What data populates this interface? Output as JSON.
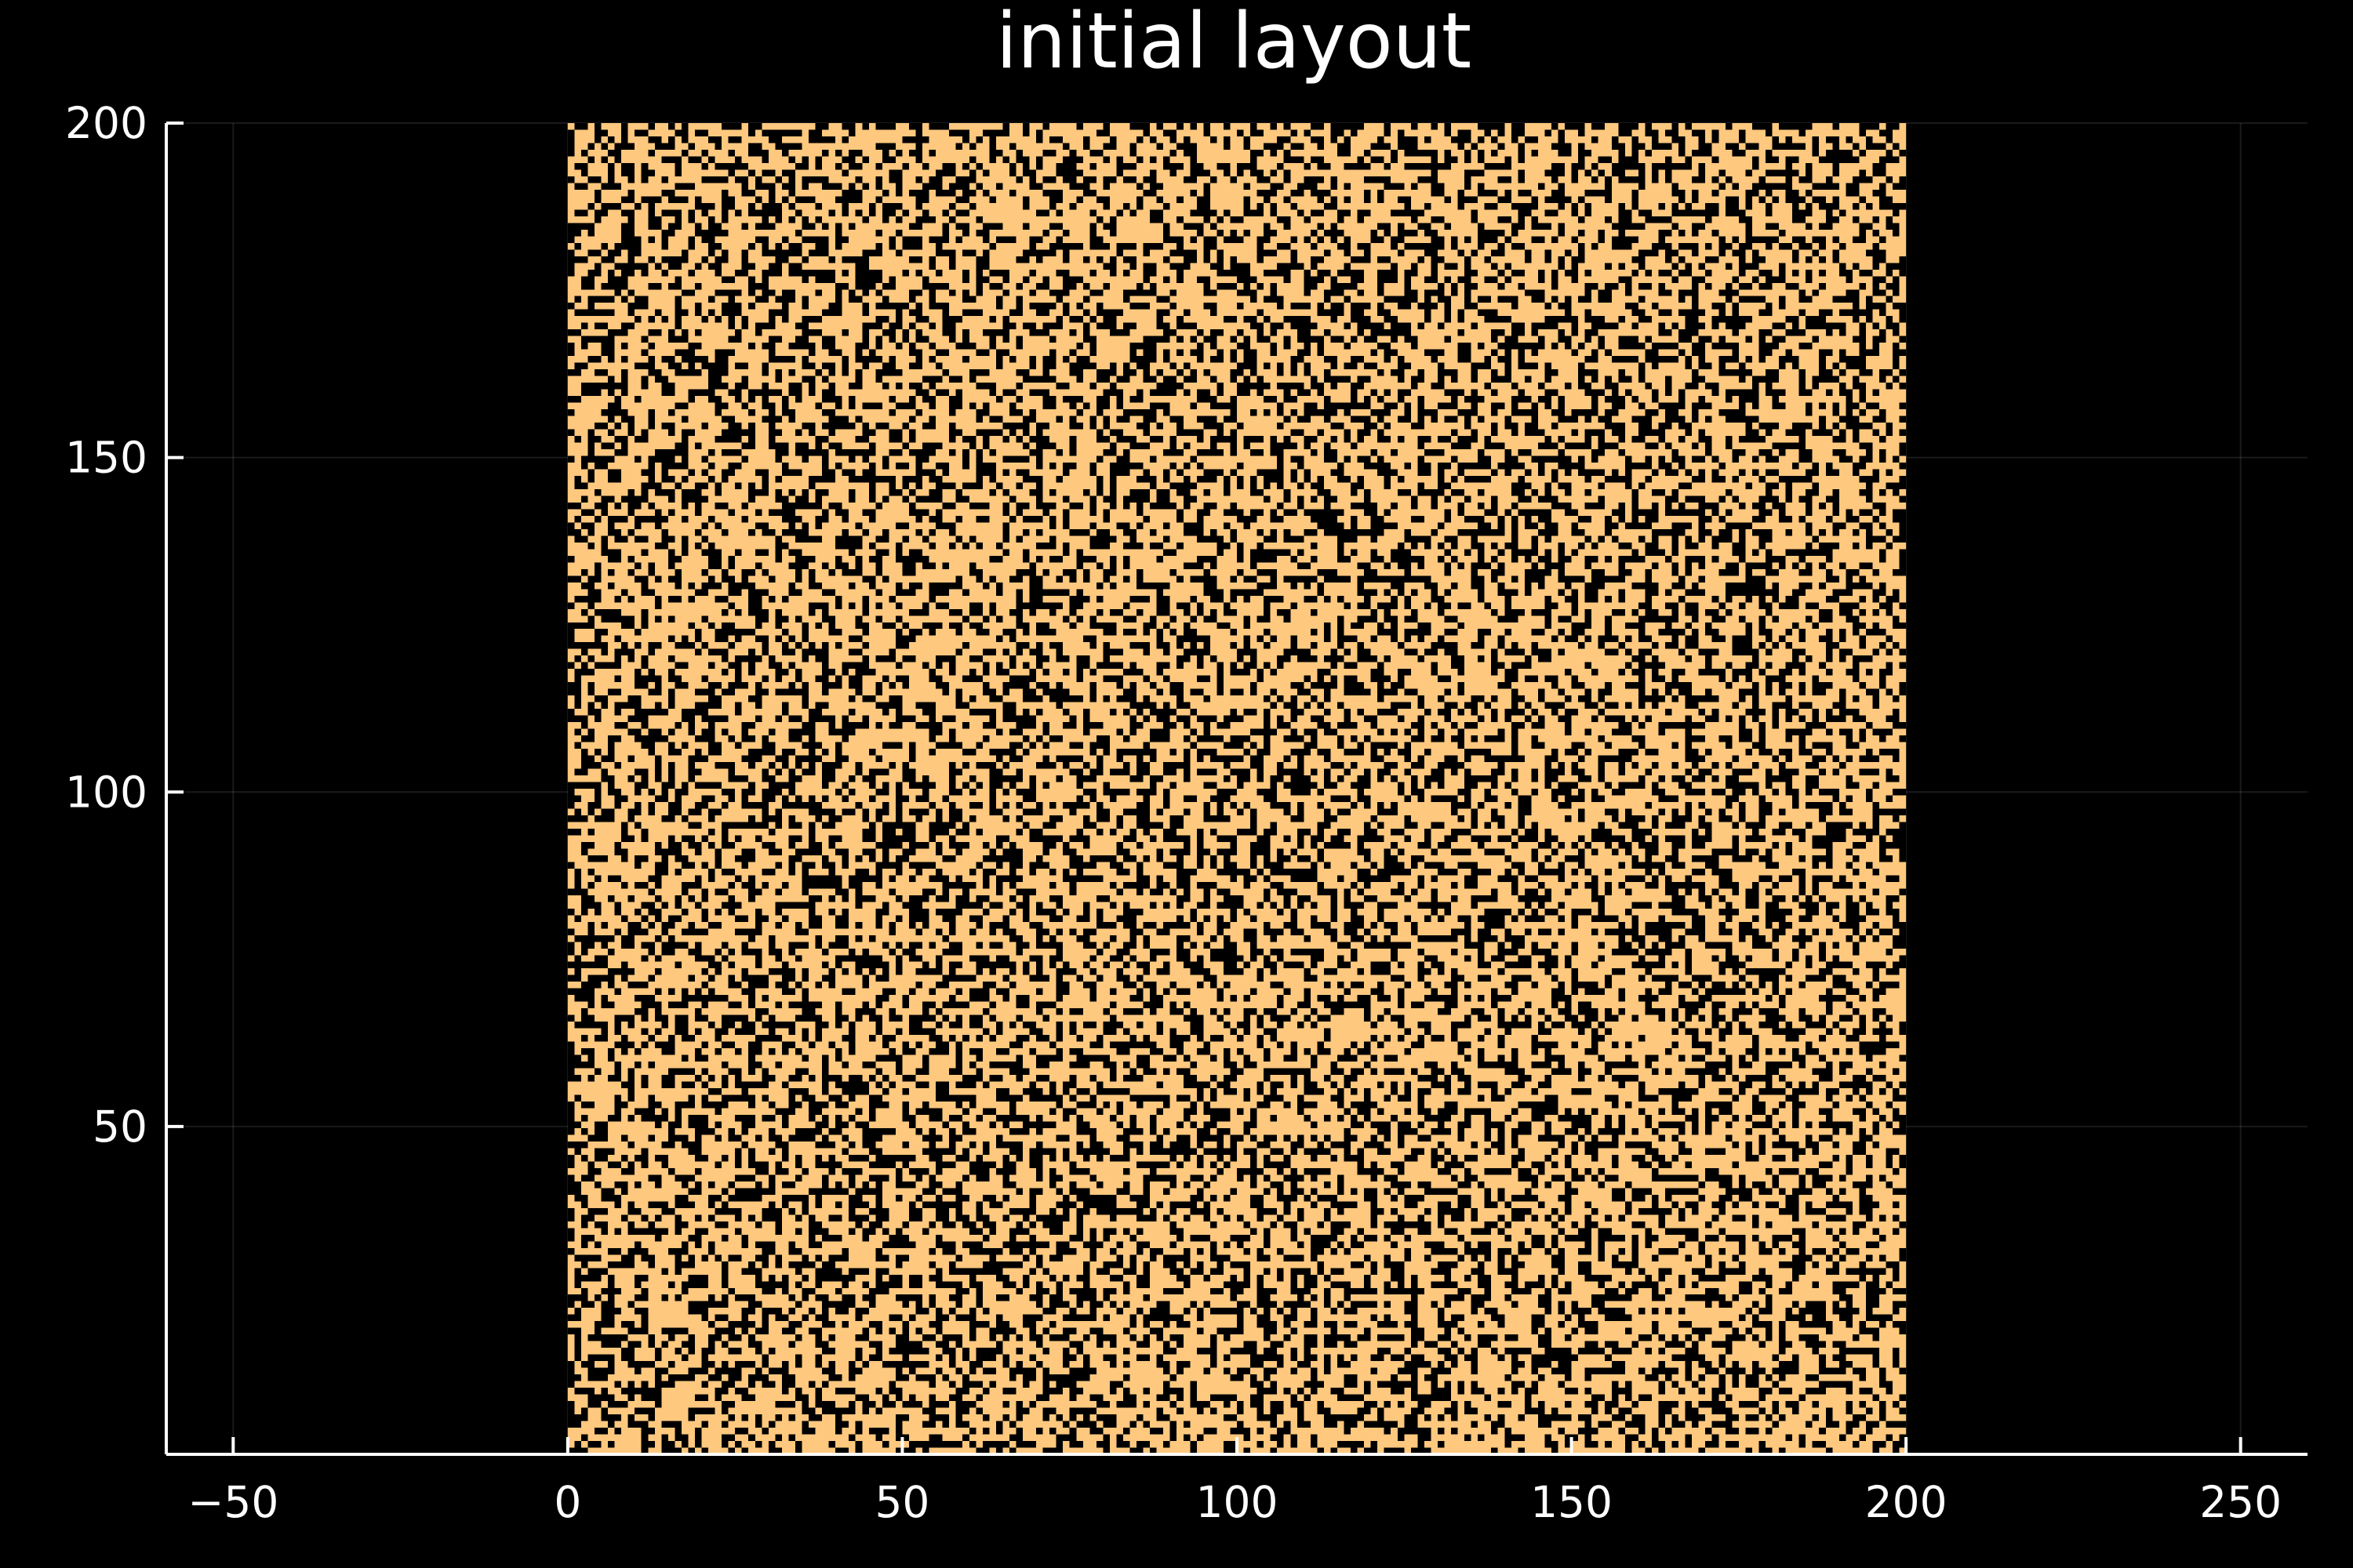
{
  "chart_data": {
    "type": "heatmap",
    "title": "initial layout",
    "xlabel": "",
    "ylabel": "",
    "xlim": [
      -60,
      260
    ],
    "ylim": [
      1,
      200
    ],
    "x_ticks": [
      -50,
      0,
      50,
      100,
      150,
      200,
      250
    ],
    "x_tick_labels": [
      "−50",
      "0",
      "50",
      "100",
      "150",
      "200",
      "250"
    ],
    "y_ticks": [
      50,
      100,
      150,
      200
    ],
    "y_tick_labels": [
      "50",
      "100",
      "150",
      "200"
    ],
    "grid": true,
    "aspect_ratio": "equal",
    "grid_size": [
      200,
      200
    ],
    "x_range": [
      0,
      200
    ],
    "y_range": [
      0,
      200
    ],
    "cell_values": [
      0,
      1
    ],
    "fill_fraction": 0.6,
    "pattern": "random binary occupancy (each cell either filled or empty)",
    "legend": "none"
  },
  "colors": {
    "background": "#000000",
    "filled_cell": "#fec87e",
    "empty_cell": "#000000",
    "axis": "#ffffff",
    "text": "#ffffff"
  }
}
